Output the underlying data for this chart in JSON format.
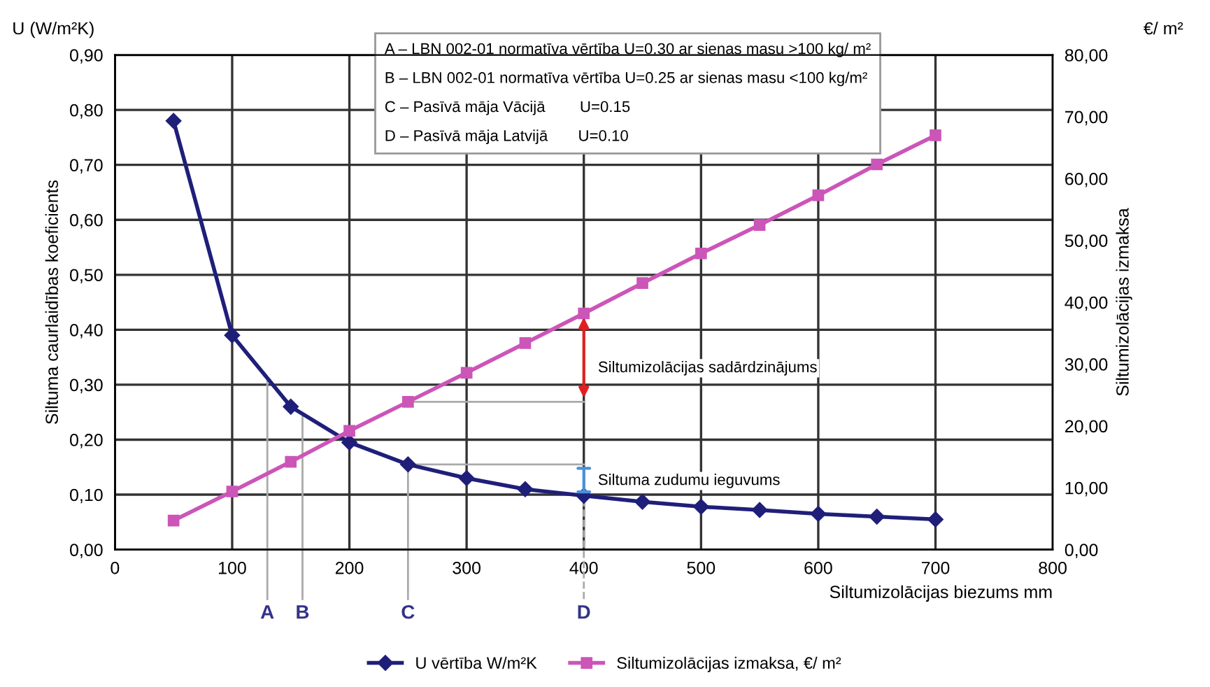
{
  "chart_data": {
    "type": "line",
    "xlabel": "Siltumizolācijas biezums mm",
    "ylabel": "Siltuma caurlaidības koeficients",
    "y2label": "Siltumizolācijas izmaksa",
    "annotations": [
      "A – LBN 002-01 normatīva vērtība U=0.30 ar sienas masu >100 kg/ m²",
      "B – LBN 002-01 normatīva vērtība U=0.25 ar sienas masu <100 kg/m²",
      "C – Pasīvā māja Vācijā        U=0.15",
      "D – Pasīvā māja Latvijā       U=0.10",
      "U (W/m²K)",
      "€/ m²",
      "Siltumizolācijas sadārdzinājums",
      {
        "text": "Siltuma zudumu ieguvums",
        "x": 250,
        "y": 0.155
      }
    ],
    "x": [
      50,
      100,
      150,
      200,
      250,
      300,
      350,
      400,
      450,
      500,
      550,
      600,
      650,
      700
    ],
    "series": [
      {
        "name": "U vērtība W/m²K",
        "color": "#1f1f7a",
        "marker": "diamond",
        "values": [
          0.78,
          0.39,
          0.26,
          0.195,
          0.155,
          0.13,
          0.11,
          0.098,
          0.087,
          0.078,
          0.072,
          0.065,
          0.06,
          0.055
        ]
      },
      {
        "name": "Siltumizolācijas izmaksa, €/ m²",
        "color": "#cc55b8",
        "marker": "square",
        "axis": "y2",
        "values": [
          4.7,
          9.4,
          14.2,
          19.2,
          23.9,
          28.6,
          33.4,
          38.2,
          43.1,
          47.9,
          52.5,
          57.3,
          62.3,
          67.0
        ]
      }
    ],
    "xlim": [
      0,
      800
    ],
    "xticks": [
      0,
      100,
      200,
      300,
      400,
      500,
      600,
      700,
      800
    ],
    "ylim": [
      0,
      0.9
    ],
    "yticks": [
      {
        "value": 0,
        "label": "0,00"
      },
      {
        "value": 0.1,
        "label": "0,10"
      },
      {
        "value": 0.2,
        "label": "0,20"
      },
      {
        "value": 0.3,
        "label": "0,30"
      },
      {
        "value": 0.4,
        "label": "0,40"
      },
      {
        "value": 0.5,
        "label": "0,50"
      },
      {
        "value": 0.6,
        "label": "0,60"
      },
      {
        "value": 0.7,
        "label": "0,70"
      },
      {
        "value": 0.8,
        "label": "0,80"
      },
      {
        "value": 0.9,
        "label": "0,90"
      }
    ],
    "y2lim": [
      0,
      80
    ],
    "y2ticks": [
      {
        "value": 0,
        "label": "0,00"
      },
      {
        "value": 10,
        "label": "10,00"
      },
      {
        "value": 20,
        "label": "20,00"
      },
      {
        "value": 30,
        "label": "30,00"
      },
      {
        "value": 40,
        "label": "40,00"
      },
      {
        "value": 50,
        "label": "50,00"
      },
      {
        "value": 60,
        "label": "60,00"
      },
      {
        "value": 70,
        "label": "70,00"
      },
      {
        "value": 80,
        "label": "80,00"
      }
    ],
    "ref_lines": [
      {
        "axis": "x",
        "value": 130,
        "label": "A",
        "color": "#aaaaaa"
      },
      {
        "axis": "x",
        "value": 160,
        "label": "B",
        "color": "#aaaaaa"
      },
      {
        "axis": "x",
        "value": 250,
        "label": "C",
        "color": "#aaaaaa"
      },
      {
        "axis": "x",
        "value": 400,
        "label": "D",
        "color": "#aaaaaa",
        "line_style": "dashed"
      }
    ],
    "grid": true,
    "legend": "bottom",
    "line_style": "solid"
  }
}
